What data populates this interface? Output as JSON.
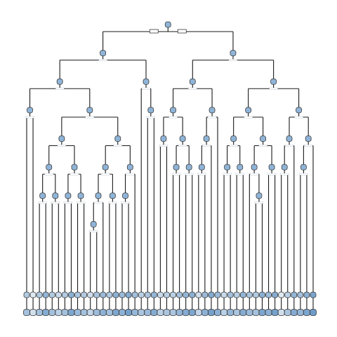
{
  "tree": {
    "root": {
      "children": [
        {
          "children": [
            {
              "children": [
                {
                  "children": [
                    {
                      "leaf": true,
                      "shade": 0.35
                    },
                    {
                      "leaf": true,
                      "shade": 0.05
                    }
                  ]
                },
                {
                  "children": [
                    {
                      "children": [
                        {
                          "children": [
                            {
                              "children": [
                                {
                                  "leaf": true,
                                  "shade": 0.35
                                },
                                {
                                  "leaf": true,
                                  "shade": 0.55
                                }
                              ]
                            },
                            {
                              "children": [
                                {
                                  "leaf": true,
                                  "shade": 0.35
                                },
                                {
                                  "leaf": true,
                                  "shade": 0.2
                                }
                              ]
                            }
                          ]
                        },
                        {
                          "children": [
                            {
                              "children": [
                                {
                                  "leaf": true,
                                  "shade": 0.35
                                },
                                {
                                  "leaf": true,
                                  "shade": 0.6
                                }
                              ]
                            },
                            {
                              "children": [
                                {
                                  "leaf": true,
                                  "shade": 0.4
                                },
                                {
                                  "leaf": true,
                                  "shade": 0.35
                                }
                              ]
                            }
                          ]
                        }
                      ]
                    },
                    {
                      "children": [
                        {
                          "children": [
                            {
                              "children": [
                                {
                                  "children": [
                                    {
                                      "leaf": true,
                                      "shade": 0.15
                                    },
                                    {
                                      "leaf": true,
                                      "shade": 0.4
                                    }
                                  ]
                                },
                                {
                                  "leaf": true,
                                  "shade": 0.5
                                }
                              ]
                            },
                            {
                              "children": [
                                {
                                  "leaf": true,
                                  "shade": 0.35
                                },
                                {
                                  "leaf": true,
                                  "shade": 0.6
                                }
                              ]
                            }
                          ]
                        },
                        {
                          "children": [
                            {
                              "children": [
                                {
                                  "leaf": true,
                                  "shade": 0.5
                                },
                                {
                                  "leaf": true,
                                  "shade": 0.65
                                }
                              ]
                            },
                            {
                              "leaf": true,
                              "shade": 0.45
                            }
                          ]
                        }
                      ]
                    }
                  ]
                }
              ]
            },
            {
              "children": [
                {
                  "leaf": true,
                  "shade": 0.3
                },
                {
                  "children": [
                    {
                      "leaf": true,
                      "shade": 0.4
                    },
                    {
                      "leaf": true,
                      "shade": 0.55
                    }
                  ]
                }
              ]
            }
          ]
        },
        {
          "children": [
            {
              "children": [
                {
                  "children": [
                    {
                      "children": [
                        {
                          "leaf": true,
                          "shade": 0.2
                        },
                        {
                          "leaf": true,
                          "shade": 0.3
                        }
                      ]
                    },
                    {
                      "children": [
                        {
                          "children": [
                            {
                              "leaf": true,
                              "shade": 0.3
                            },
                            {
                              "leaf": true,
                              "shade": 0.45
                            }
                          ]
                        },
                        {
                          "children": [
                            {
                              "leaf": true,
                              "shade": 0.55
                            },
                            {
                              "leaf": true,
                              "shade": 0.6
                            }
                          ]
                        }
                      ]
                    }
                  ]
                },
                {
                  "children": [
                    {
                      "children": [
                        {
                          "children": [
                            {
                              "leaf": true,
                              "shade": 0.15
                            },
                            {
                              "leaf": true,
                              "shade": 0.5
                            }
                          ]
                        },
                        {
                          "leaf": true,
                          "shade": 0.65
                        }
                      ]
                    },
                    {
                      "leaf": true,
                      "shade": 0.5
                    }
                  ]
                }
              ]
            },
            {
              "children": [
                {
                  "children": [
                    {
                      "children": [
                        {
                          "children": [
                            {
                              "leaf": true,
                              "shade": 0.2
                            },
                            {
                              "leaf": true,
                              "shade": 0.45
                            }
                          ]
                        },
                        {
                          "children": [
                            {
                              "leaf": true,
                              "shade": 0.3
                            },
                            {
                              "leaf": true,
                              "shade": 0.55
                            }
                          ]
                        }
                      ]
                    },
                    {
                      "children": [
                        {
                          "children": [
                            {
                              "leaf": true,
                              "shade": 0.4
                            },
                            {
                              "children": [
                                {
                                  "leaf": true,
                                  "shade": 0.35
                                },
                                {
                                  "leaf": true,
                                  "shade": 0.6
                                }
                              ]
                            }
                          ]
                        },
                        {
                          "children": [
                            {
                              "leaf": true,
                              "shade": 0.5
                            },
                            {
                              "leaf": true,
                              "shade": 0.65
                            }
                          ]
                        }
                      ]
                    }
                  ]
                },
                {
                  "children": [
                    {
                      "children": [
                        {
                          "children": [
                            {
                              "leaf": true,
                              "shade": 0.05
                            },
                            {
                              "leaf": true,
                              "shade": 0.3
                            }
                          ]
                        },
                        {
                          "leaf": true,
                          "shade": 0.55
                        }
                      ]
                    },
                    {
                      "children": [
                        {
                          "children": [
                            {
                              "leaf": true,
                              "shade": 0.45
                            },
                            {
                              "leaf": true,
                              "shade": 0.6
                            }
                          ]
                        },
                        {
                          "leaf": true,
                          "shade": 0.7
                        }
                      ]
                    }
                  ]
                }
              ]
            }
          ]
        }
      ]
    }
  },
  "colors": {
    "edge": "#1a1a1a",
    "node_light": "#e8eff6",
    "node_dark": "#4f87bd",
    "label_box": "#ffffff"
  }
}
